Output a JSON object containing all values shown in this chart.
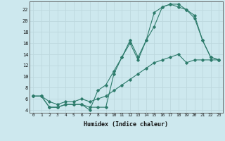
{
  "xlabel": "Humidex (Indice chaleur)",
  "line1_x": [
    0,
    1,
    2,
    3,
    4,
    5,
    6,
    7,
    8,
    9,
    10,
    11,
    12,
    13,
    14,
    15,
    16,
    17,
    18,
    19,
    20,
    21,
    22,
    23
  ],
  "line1_y": [
    6.5,
    6.5,
    4.5,
    4.5,
    5.0,
    5.0,
    5.0,
    4.0,
    7.5,
    8.5,
    11.0,
    13.5,
    16.0,
    13.0,
    16.5,
    21.5,
    22.5,
    23.0,
    22.5,
    22.0,
    20.5,
    16.5,
    13.5,
    13.0
  ],
  "line2_x": [
    0,
    1,
    2,
    3,
    4,
    5,
    6,
    7,
    8,
    9,
    10,
    11,
    12,
    13,
    14,
    15,
    16,
    17,
    18,
    19,
    20,
    21,
    22,
    23
  ],
  "line2_y": [
    6.5,
    6.5,
    4.5,
    4.5,
    5.0,
    5.0,
    5.0,
    4.5,
    4.5,
    4.5,
    10.5,
    13.5,
    16.5,
    13.5,
    16.5,
    19.0,
    22.5,
    23.0,
    23.0,
    22.0,
    21.0,
    16.5,
    13.5,
    13.0
  ],
  "line3_x": [
    0,
    1,
    2,
    3,
    4,
    5,
    6,
    7,
    8,
    9,
    10,
    11,
    12,
    13,
    14,
    15,
    16,
    17,
    18,
    19,
    20,
    21,
    22,
    23
  ],
  "line3_y": [
    6.5,
    6.5,
    5.5,
    5.0,
    5.5,
    5.5,
    6.0,
    5.5,
    6.0,
    6.5,
    7.5,
    8.5,
    9.5,
    10.5,
    11.5,
    12.5,
    13.0,
    13.5,
    14.0,
    12.5,
    13.0,
    13.0,
    13.0,
    13.0
  ],
  "line_color": "#2d7b6b",
  "bg_color": "#cde8ee",
  "grid_color": "#bdd8de",
  "xlim": [
    -0.5,
    23.5
  ],
  "ylim": [
    3.5,
    23.5
  ],
  "yticks": [
    4,
    6,
    8,
    10,
    12,
    14,
    16,
    18,
    20,
    22
  ],
  "xticks": [
    0,
    1,
    2,
    3,
    4,
    5,
    6,
    7,
    8,
    9,
    10,
    11,
    12,
    13,
    14,
    15,
    16,
    17,
    18,
    19,
    20,
    21,
    22,
    23
  ]
}
